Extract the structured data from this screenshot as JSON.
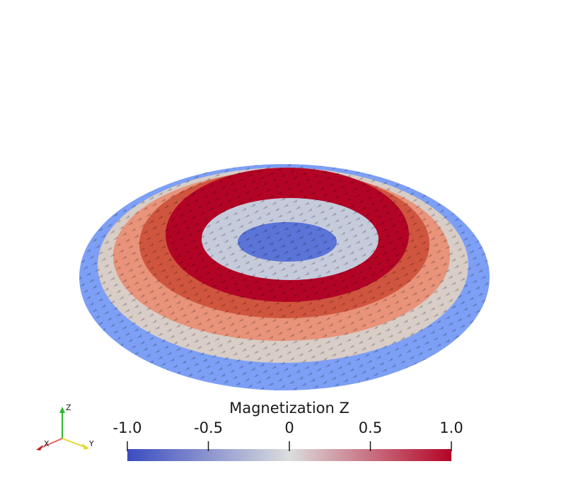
{
  "colorbar": {
    "title": "Magnetization Z",
    "lim": [
      -1,
      1
    ],
    "ticks": [
      {
        "value": -1,
        "label": "-1.0"
      },
      -0.5,
      0,
      0.5,
      {
        "value": 1,
        "label": "1.0"
      }
    ],
    "colormap": [
      "#3b4cc0",
      "#dcdddd",
      "#b40426"
    ]
  },
  "axes_triad": {
    "x": "X",
    "y": "Y",
    "z": "Z"
  }
}
